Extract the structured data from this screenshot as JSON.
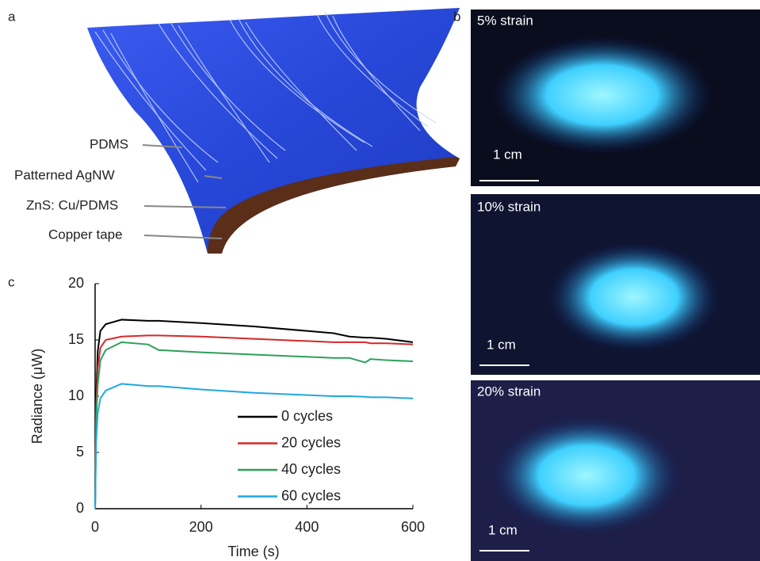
{
  "panels": {
    "a": {
      "label": "a",
      "layers": [
        "PDMS",
        "Patterned AgNW",
        "ZnS: Cu/PDMS",
        "Copper tape"
      ]
    },
    "b": {
      "label": "b",
      "photos": [
        {
          "strain": "5% strain",
          "scale": "1 cm"
        },
        {
          "strain": "10% strain",
          "scale": "1 cm"
        },
        {
          "strain": "20% strain",
          "scale": "1 cm"
        }
      ]
    },
    "c": {
      "label": "c"
    }
  },
  "chart_data": {
    "type": "line",
    "x_label": "Time (s)",
    "y_label": "Radiance (μW)",
    "x": [
      0,
      2,
      5,
      10,
      20,
      50,
      100,
      120,
      200,
      300,
      400,
      450,
      480,
      510,
      520,
      550,
      600
    ],
    "series": [
      {
        "name": "0 cycles",
        "color": "#000000",
        "values": [
          0,
          10,
          14,
          15.8,
          16.4,
          16.8,
          16.7,
          16.7,
          16.5,
          16.2,
          15.8,
          15.6,
          15.3,
          15.2,
          15.2,
          15.1,
          14.8
        ]
      },
      {
        "name": "20 cycles",
        "color": "#d62728",
        "values": [
          0,
          9,
          12.5,
          14.3,
          15,
          15.3,
          15.4,
          15.4,
          15.3,
          15.1,
          14.9,
          14.8,
          14.8,
          14.8,
          14.7,
          14.7,
          14.6
        ]
      },
      {
        "name": "40 cycles",
        "color": "#2ca05a",
        "values": [
          0,
          8,
          11,
          13.2,
          14.1,
          14.8,
          14.6,
          14.1,
          13.9,
          13.7,
          13.5,
          13.4,
          13.4,
          13,
          13.3,
          13.2,
          13.1
        ]
      },
      {
        "name": "60 cycles",
        "color": "#1fa8e0",
        "values": [
          0,
          6,
          8.5,
          9.8,
          10.5,
          11.1,
          10.9,
          10.9,
          10.6,
          10.3,
          10.1,
          10,
          10,
          9.95,
          9.9,
          9.9,
          9.8
        ]
      }
    ],
    "xlim": [
      0,
      600
    ],
    "ylim": [
      0,
      20
    ],
    "xticks": [
      0,
      200,
      400,
      600
    ],
    "yticks": [
      0,
      5,
      10,
      15,
      20
    ],
    "legend": "lower right"
  }
}
